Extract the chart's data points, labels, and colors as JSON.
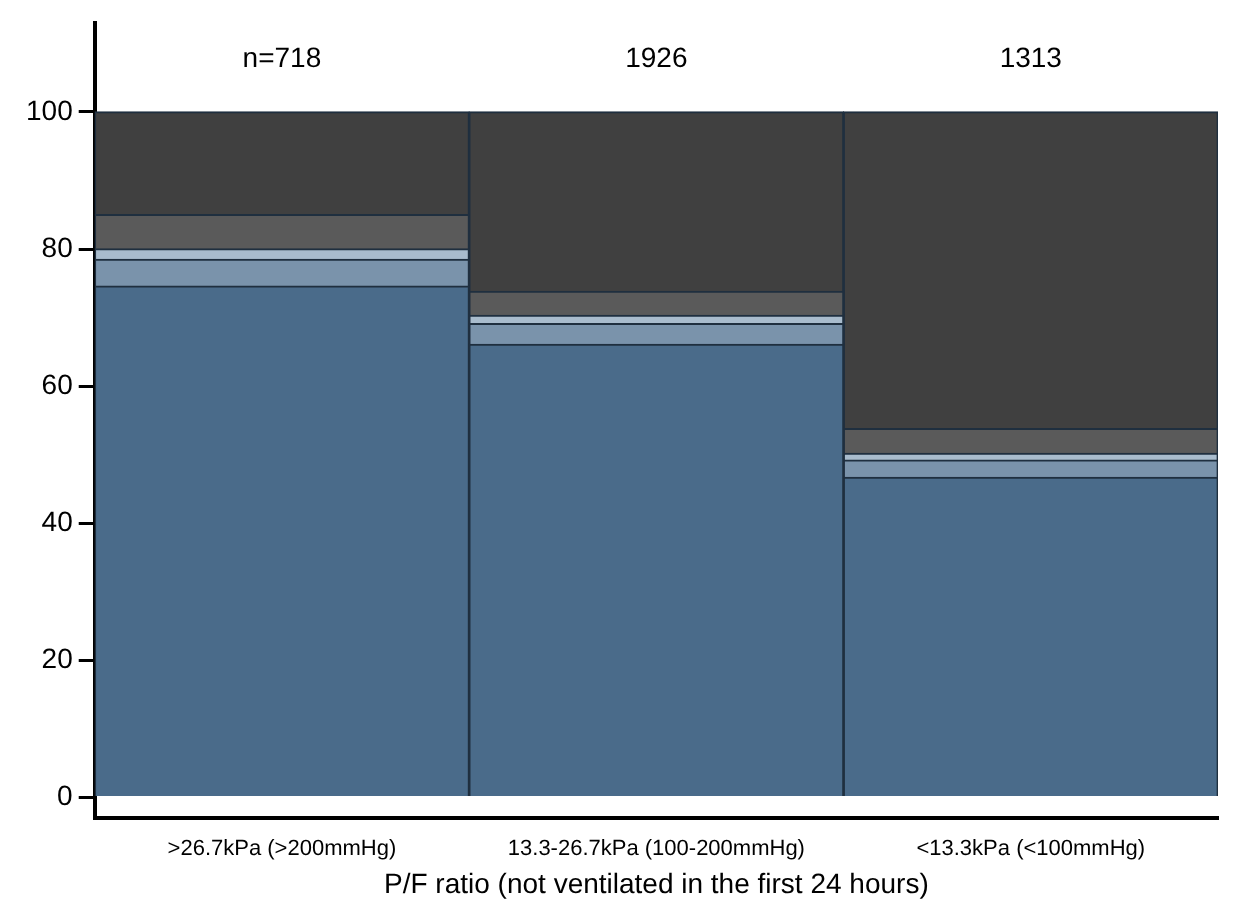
{
  "chart_data": {
    "type": "bar",
    "stacked": true,
    "xlabel": "P/F ratio (not ventilated in the first 24 hours)",
    "categories": [
      ">26.7kPa (>200mmHg)",
      "13.3-26.7kPa (100-200mmHg)",
      "<13.3kPa (<100mmHg)"
    ],
    "series": [
      {
        "color": "#4a6b8a",
        "values": [
          74.6,
          66.1,
          46.7
        ]
      },
      {
        "color": "#7a93ab",
        "values": [
          3.9,
          3.0,
          2.5
        ]
      },
      {
        "color": "#a9bccd",
        "values": [
          1.5,
          1.2,
          1.0
        ]
      },
      {
        "color": "#5a5a5a",
        "values": [
          5.0,
          3.5,
          3.6
        ]
      },
      {
        "color": "#404040",
        "values": [
          15.0,
          26.2,
          46.2
        ]
      }
    ],
    "ylim": [
      -3,
      113
    ],
    "yticks": [
      0,
      20,
      40,
      60,
      80,
      100
    ],
    "grid": false,
    "legend": false,
    "annotations": [
      "n=718",
      "1926",
      "1313"
    ]
  }
}
